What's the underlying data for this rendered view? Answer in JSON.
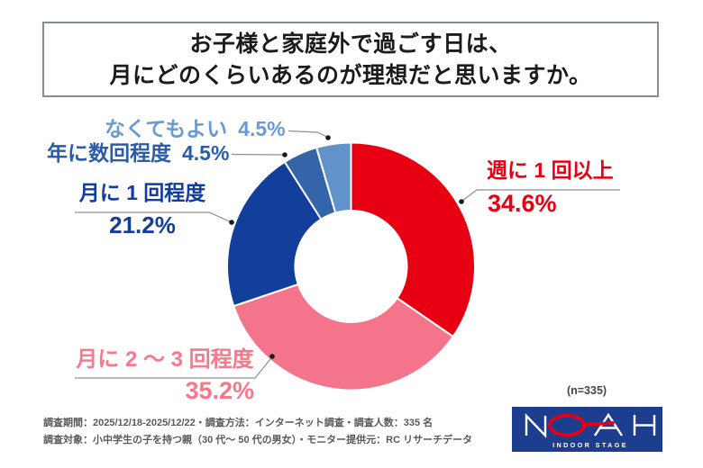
{
  "title": {
    "line1": "お子様と家庭外で過ごす日は、",
    "line2": "月にどのくらいあるのが理想だと思いますか。"
  },
  "chart_data": {
    "type": "pie",
    "variant": "donut",
    "start_angle_deg": 0,
    "direction": "clockwise",
    "inner_radius_ratio": 0.45,
    "n_label": "(n=335)",
    "total_pct": 100,
    "segments": [
      {
        "label": "週に 1 回以上",
        "value_pct": 34.6,
        "display_pct": "34.6%",
        "color": "#E60012",
        "label_color": "#E60012"
      },
      {
        "label": "月に 2 ～ 3 回程度",
        "value_pct": 35.2,
        "display_pct": "35.2%",
        "color": "#F4758B",
        "label_color": "#F7778B"
      },
      {
        "label": "月に 1 回程度",
        "value_pct": 21.2,
        "display_pct": "21.2%",
        "color": "#123F9C",
        "label_color": "#123C9D"
      },
      {
        "label": "年に数回程度",
        "value_pct": 4.5,
        "display_pct": "4.5%",
        "color": "#3465A8",
        "label_color": "#2B5CA8"
      },
      {
        "label": "なくてもよい",
        "value_pct": 4.5,
        "display_pct": "4.5%",
        "color": "#6192CA",
        "label_color": "#6B9AD2"
      }
    ]
  },
  "footnote": {
    "line1": "調査期間：2025/12/18-2025/12/22・調査方法：インターネット調査・調査人数：335 名",
    "line2": "調査対象：小中学生の子を持つ親（30 代～ 50 代の男女）・モニター提供元：RC リサーチデータ"
  },
  "logo": {
    "brand": "NOAH",
    "tagline": "INDOOR STAGE",
    "bg_color": "#1D3D8F",
    "accent_color": "#E60012",
    "text_color": "#FFFFFF"
  }
}
